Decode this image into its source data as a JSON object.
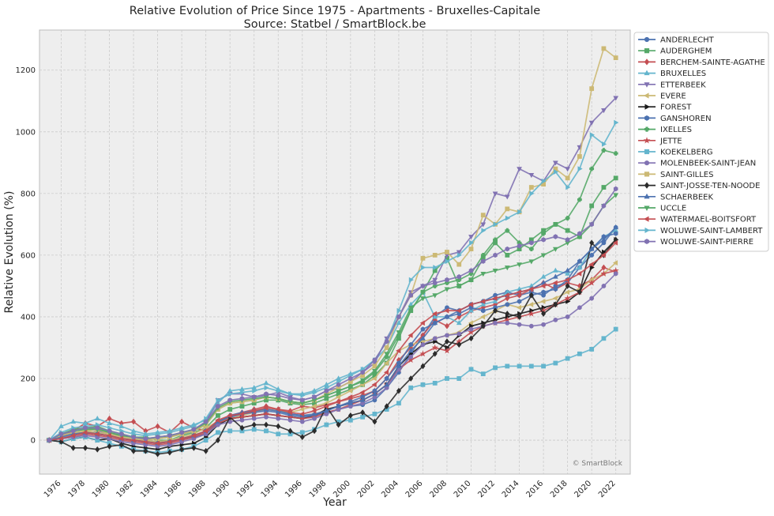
{
  "chart_data": {
    "type": "line",
    "title": "Relative Evolution of Price Since 1975 - Apartments - Bruxelles-Capitale",
    "subtitle": "Source: Statbel / SmartBlock.be",
    "xlabel": "Year",
    "ylabel": "Relative Evolution (%)",
    "watermark": "© SmartBlock",
    "xlim": [
      1974.2,
      2023.2
    ],
    "ylim": [
      -110,
      1330
    ],
    "x": [
      1975,
      1976,
      1977,
      1978,
      1979,
      1980,
      1981,
      1982,
      1983,
      1984,
      1985,
      1986,
      1987,
      1988,
      1989,
      1990,
      1991,
      1992,
      1993,
      1994,
      1995,
      1996,
      1997,
      1998,
      1999,
      2000,
      2001,
      2002,
      2003,
      2004,
      2005,
      2006,
      2007,
      2008,
      2009,
      2010,
      2011,
      2012,
      2013,
      2014,
      2015,
      2016,
      2017,
      2018,
      2019,
      2020,
      2021,
      2022
    ],
    "x_ticks": [
      1976,
      1978,
      1980,
      1982,
      1984,
      1986,
      1988,
      1990,
      1992,
      1994,
      1996,
      1998,
      2000,
      2002,
      2004,
      2006,
      2008,
      2010,
      2012,
      2014,
      2016,
      2018,
      2020,
      2022
    ],
    "x_tick_labels": [
      "1976",
      "1978",
      "1980",
      "1982",
      "1984",
      "1986",
      "1988",
      "1990",
      "1992",
      "1994",
      "1996",
      "1998",
      "2000",
      "2002",
      "2004",
      "2006",
      "2008",
      "2010",
      "2012",
      "2014",
      "2016",
      "2018",
      "2020",
      "2022"
    ],
    "y_ticks": [
      0,
      200,
      400,
      600,
      800,
      1000,
      1200
    ],
    "y_tick_labels": [
      "0",
      "200",
      "400",
      "600",
      "800",
      "1000",
      "1200"
    ],
    "legend_position": "outside-right",
    "grid": true,
    "series": [
      {
        "name": "ANDERLECHT",
        "color": "#4c72b0",
        "marker": "circle",
        "values": [
          0,
          18,
          22,
          30,
          20,
          25,
          10,
          5,
          0,
          -5,
          -2,
          5,
          10,
          20,
          55,
          75,
          85,
          95,
          100,
          95,
          85,
          80,
          80,
          90,
          100,
          110,
          115,
          130,
          170,
          220,
          280,
          340,
          400,
          430,
          420,
          440,
          450,
          470,
          480,
          470,
          480,
          470,
          500,
          510,
          560,
          600,
          640,
          690
        ]
      },
      {
        "name": "AUDERGHEM",
        "color": "#55a868",
        "marker": "square",
        "values": [
          0,
          20,
          30,
          35,
          40,
          25,
          15,
          10,
          10,
          0,
          0,
          15,
          25,
          40,
          80,
          100,
          110,
          120,
          130,
          130,
          120,
          115,
          120,
          135,
          150,
          165,
          180,
          210,
          250,
          330,
          420,
          480,
          550,
          590,
          500,
          520,
          590,
          640,
          600,
          620,
          650,
          680,
          700,
          680,
          660,
          760,
          820,
          850
        ]
      },
      {
        "name": "BERCHEM-SAINTE-AGATHE",
        "color": "#c44e52",
        "marker": "diamond",
        "values": [
          0,
          10,
          30,
          55,
          45,
          70,
          55,
          60,
          30,
          45,
          25,
          60,
          40,
          30,
          60,
          80,
          90,
          100,
          110,
          100,
          95,
          110,
          105,
          115,
          125,
          135,
          145,
          160,
          200,
          260,
          300,
          340,
          390,
          370,
          400,
          420,
          430,
          440,
          460,
          470,
          490,
          510,
          490,
          510,
          500,
          520,
          560,
          545
        ]
      },
      {
        "name": "BRUXELLES",
        "color": "#64b5cd",
        "marker": "triangle-up",
        "values": [
          0,
          45,
          60,
          55,
          70,
          55,
          45,
          30,
          20,
          25,
          30,
          40,
          50,
          65,
          120,
          160,
          165,
          170,
          185,
          165,
          150,
          150,
          160,
          180,
          200,
          215,
          230,
          260,
          300,
          380,
          440,
          480,
          400,
          400,
          380,
          420,
          440,
          450,
          480,
          490,
          500,
          530,
          550,
          540,
          560,
          620,
          660,
          680
        ]
      },
      {
        "name": "ETTERBEEK",
        "color": "#8172b2",
        "marker": "triangle-down",
        "values": [
          0,
          15,
          25,
          20,
          30,
          20,
          10,
          5,
          0,
          10,
          15,
          20,
          30,
          60,
          130,
          150,
          150,
          140,
          145,
          155,
          140,
          130,
          140,
          160,
          170,
          190,
          220,
          250,
          330,
          400,
          480,
          500,
          520,
          600,
          610,
          660,
          700,
          800,
          790,
          880,
          860,
          840,
          900,
          880,
          950,
          1030,
          1070,
          1110
        ]
      },
      {
        "name": "EVERE",
        "color": "#ccb974",
        "marker": "triangle-left",
        "values": [
          0,
          10,
          20,
          30,
          25,
          20,
          10,
          5,
          0,
          -5,
          0,
          10,
          20,
          40,
          60,
          70,
          80,
          90,
          100,
          95,
          90,
          100,
          110,
          120,
          140,
          160,
          180,
          200,
          250,
          290,
          310,
          320,
          330,
          340,
          350,
          380,
          400,
          420,
          440,
          430,
          440,
          450,
          460,
          480,
          490,
          520,
          540,
          575
        ]
      },
      {
        "name": "FOREST",
        "color": "#1a1a1a",
        "marker": "triangle-right",
        "values": [
          0,
          -5,
          5,
          10,
          0,
          5,
          -10,
          -20,
          -25,
          -30,
          -20,
          -15,
          -10,
          10,
          50,
          70,
          75,
          80,
          85,
          80,
          75,
          70,
          80,
          100,
          110,
          120,
          130,
          150,
          180,
          240,
          280,
          310,
          320,
          300,
          340,
          370,
          380,
          390,
          400,
          410,
          420,
          430,
          440,
          450,
          480,
          560,
          610,
          650
        ]
      },
      {
        "name": "GANSHOREN",
        "color": "#4c72b0",
        "marker": "hexagon",
        "values": [
          0,
          5,
          15,
          25,
          20,
          15,
          5,
          0,
          -5,
          -10,
          -5,
          5,
          15,
          30,
          60,
          75,
          85,
          90,
          95,
          90,
          80,
          75,
          80,
          95,
          110,
          125,
          140,
          160,
          200,
          250,
          310,
          360,
          380,
          400,
          410,
          430,
          420,
          430,
          440,
          450,
          470,
          480,
          490,
          520,
          580,
          620,
          660,
          670
        ]
      },
      {
        "name": "IXELLES",
        "color": "#55a868",
        "marker": "plus",
        "values": [
          0,
          20,
          35,
          40,
          45,
          30,
          20,
          10,
          5,
          5,
          10,
          20,
          30,
          50,
          100,
          120,
          125,
          130,
          140,
          135,
          125,
          120,
          130,
          145,
          160,
          175,
          190,
          220,
          270,
          340,
          420,
          480,
          500,
          510,
          520,
          540,
          600,
          650,
          680,
          640,
          620,
          670,
          700,
          720,
          780,
          880,
          940,
          930
        ]
      },
      {
        "name": "JETTE",
        "color": "#c44e52",
        "marker": "star",
        "values": [
          0,
          5,
          10,
          20,
          15,
          10,
          0,
          -5,
          -10,
          -15,
          -10,
          0,
          10,
          25,
          55,
          70,
          75,
          80,
          85,
          80,
          75,
          70,
          75,
          90,
          100,
          115,
          130,
          150,
          180,
          230,
          260,
          280,
          300,
          290,
          320,
          350,
          370,
          380,
          390,
          400,
          410,
          420,
          440,
          460,
          480,
          510,
          540,
          550
        ]
      },
      {
        "name": "KOEKELBERG",
        "color": "#64b5cd",
        "marker": "square",
        "values": [
          0,
          -5,
          5,
          10,
          0,
          -10,
          -20,
          -30,
          -35,
          -40,
          -35,
          -30,
          -20,
          0,
          25,
          30,
          30,
          35,
          30,
          20,
          20,
          25,
          35,
          50,
          60,
          65,
          75,
          85,
          100,
          120,
          170,
          180,
          185,
          200,
          200,
          230,
          215,
          235,
          240,
          240,
          240,
          240,
          250,
          265,
          280,
          295,
          330,
          360
        ]
      },
      {
        "name": "MOLENBEEK-SAINT-JEAN",
        "color": "#8172b2",
        "marker": "circle",
        "values": [
          0,
          5,
          10,
          15,
          10,
          5,
          -5,
          -10,
          -15,
          -20,
          -15,
          -5,
          5,
          20,
          50,
          60,
          65,
          70,
          75,
          70,
          65,
          60,
          70,
          85,
          100,
          110,
          120,
          140,
          170,
          230,
          270,
          310,
          330,
          340,
          345,
          360,
          370,
          380,
          380,
          375,
          370,
          375,
          390,
          400,
          430,
          460,
          500,
          540
        ]
      },
      {
        "name": "SAINT-GILLES",
        "color": "#ccb974",
        "marker": "square",
        "values": [
          0,
          15,
          25,
          30,
          35,
          20,
          10,
          5,
          0,
          5,
          10,
          20,
          30,
          50,
          100,
          120,
          125,
          130,
          140,
          135,
          125,
          120,
          130,
          150,
          170,
          190,
          210,
          240,
          300,
          400,
          470,
          590,
          600,
          610,
          570,
          620,
          730,
          700,
          750,
          740,
          820,
          830,
          880,
          850,
          920,
          1140,
          1270,
          1240
        ]
      },
      {
        "name": "SAINT-JOSSE-TEN-NOODE",
        "color": "#2b2b2b",
        "marker": "diamond",
        "values": [
          0,
          -5,
          -25,
          -25,
          -30,
          -20,
          -15,
          -35,
          -35,
          -45,
          -40,
          -30,
          -25,
          -35,
          0,
          75,
          40,
          50,
          50,
          45,
          30,
          10,
          30,
          110,
          50,
          80,
          90,
          60,
          110,
          160,
          200,
          240,
          280,
          320,
          310,
          330,
          370,
          420,
          410,
          400,
          470,
          410,
          440,
          500,
          480,
          640,
          600,
          650
        ]
      },
      {
        "name": "SCHAERBEEK",
        "color": "#4c72b0",
        "marker": "triangle-up",
        "values": [
          0,
          10,
          20,
          25,
          20,
          15,
          5,
          0,
          -5,
          -10,
          -5,
          5,
          15,
          30,
          60,
          80,
          90,
          95,
          100,
          95,
          85,
          80,
          85,
          95,
          110,
          120,
          130,
          150,
          180,
          240,
          290,
          330,
          380,
          400,
          420,
          440,
          450,
          460,
          470,
          480,
          490,
          510,
          530,
          550,
          580,
          620,
          650,
          690
        ]
      },
      {
        "name": "UCCLE",
        "color": "#55a868",
        "marker": "triangle-down",
        "values": [
          0,
          20,
          30,
          35,
          35,
          25,
          15,
          10,
          5,
          10,
          15,
          25,
          35,
          55,
          105,
          125,
          130,
          135,
          140,
          135,
          125,
          120,
          130,
          145,
          160,
          175,
          195,
          225,
          280,
          350,
          430,
          460,
          470,
          490,
          500,
          520,
          540,
          550,
          560,
          570,
          580,
          600,
          620,
          640,
          660,
          700,
          760,
          795
        ]
      },
      {
        "name": "WATERMAEL-BOITSFORT",
        "color": "#c44e52",
        "marker": "triangle-left",
        "values": [
          0,
          5,
          15,
          25,
          20,
          15,
          5,
          0,
          -5,
          -10,
          -5,
          5,
          15,
          30,
          65,
          80,
          85,
          95,
          105,
          100,
          90,
          85,
          95,
          110,
          125,
          140,
          155,
          180,
          220,
          290,
          340,
          380,
          410,
          420,
          420,
          440,
          450,
          460,
          470,
          480,
          490,
          500,
          510,
          520,
          540,
          570,
          600,
          640
        ]
      },
      {
        "name": "WOLUWE-SAINT-LAMBERT",
        "color": "#64b5cd",
        "marker": "triangle-right",
        "values": [
          0,
          25,
          40,
          45,
          50,
          40,
          30,
          20,
          15,
          20,
          25,
          35,
          45,
          70,
          130,
          150,
          155,
          160,
          170,
          160,
          150,
          145,
          155,
          170,
          190,
          210,
          230,
          260,
          320,
          420,
          520,
          560,
          560,
          580,
          600,
          640,
          680,
          700,
          720,
          740,
          800,
          840,
          870,
          820,
          880,
          990,
          960,
          1030
        ]
      },
      {
        "name": "WOLUWE-SAINT-PIERRE",
        "color": "#8172b2",
        "marker": "hexagon",
        "values": [
          0,
          20,
          30,
          40,
          40,
          30,
          20,
          10,
          5,
          10,
          15,
          25,
          35,
          60,
          110,
          130,
          135,
          140,
          150,
          145,
          135,
          130,
          140,
          160,
          180,
          200,
          220,
          260,
          320,
          400,
          470,
          500,
          510,
          520,
          530,
          550,
          580,
          600,
          620,
          630,
          640,
          650,
          660,
          650,
          670,
          700,
          760,
          815
        ]
      }
    ]
  }
}
